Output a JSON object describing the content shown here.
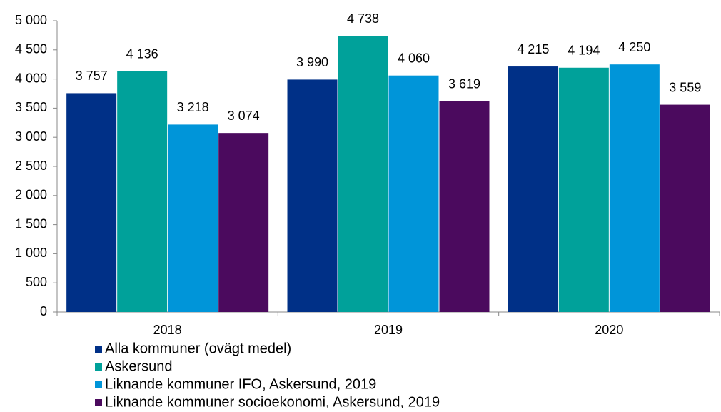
{
  "chart_data": {
    "type": "bar",
    "categories": [
      "2018",
      "2019",
      "2020"
    ],
    "series": [
      {
        "name": "Alla kommuner (ovägt medel)",
        "color": "#003087",
        "values": [
          3757,
          3990,
          4215
        ],
        "value_labels": [
          "3 757",
          "3 990",
          "4 215"
        ]
      },
      {
        "name": "Askersund",
        "color": "#00a19a",
        "values": [
          4136,
          4738,
          4194
        ],
        "value_labels": [
          "4 136",
          "4 738",
          "4 194"
        ]
      },
      {
        "name": "Liknande kommuner IFO, Askersund, 2019",
        "color": "#0095d9",
        "values": [
          3218,
          4060,
          4250
        ],
        "value_labels": [
          "3 218",
          "4 060",
          "4 250"
        ]
      },
      {
        "name": "Liknande kommuner socioekonomi, Askersund, 2019",
        "color": "#4b0a5e",
        "values": [
          3074,
          3619,
          3559
        ],
        "value_labels": [
          "3 074",
          "3 619",
          "3 559"
        ]
      }
    ],
    "ylim": [
      0,
      5000
    ],
    "yticks": [
      0,
      500,
      {
        "value": 1000,
        "label": "1 000"
      },
      {
        "value": 1500,
        "label": "1 500"
      },
      {
        "value": 2000,
        "label": "2 000"
      },
      {
        "value": 2500,
        "label": "2 500"
      },
      {
        "value": 3000,
        "label": "3 000"
      },
      {
        "value": 3500,
        "label": "3 500"
      },
      {
        "value": 4000,
        "label": "4 000"
      },
      {
        "value": 4500,
        "label": "4 500"
      },
      {
        "value": 5000,
        "label": "5 000"
      }
    ],
    "legend": "bottom"
  }
}
